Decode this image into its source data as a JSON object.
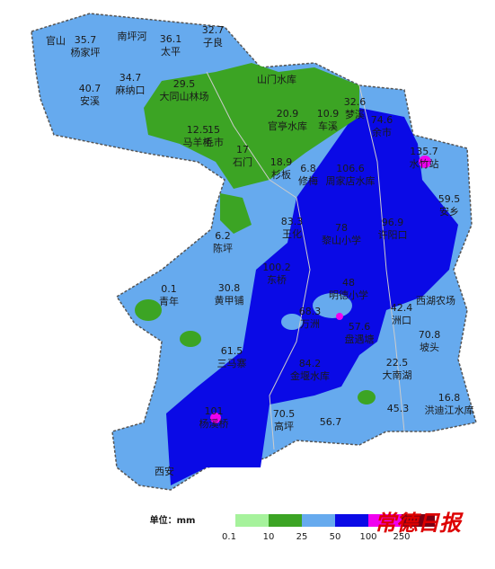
{
  "stations": [
    {
      "value": "35.7",
      "name": "杨家坪",
      "x": 0
    },
    {
      "value": "36.1",
      "name": "太平"
    },
    {
      "value": "32.7",
      "name": "子良"
    },
    {
      "value": "34.7",
      "name": "麻纳口"
    },
    {
      "value": "40.7",
      "name": "安溪"
    },
    {
      "value": "29.5",
      "name": "大同山林场"
    },
    {
      "value": "32.6",
      "name": "梦溪"
    },
    {
      "value": "20.9",
      "name": "官亭水库"
    },
    {
      "value": "10.9",
      "name": "车溪"
    },
    {
      "value": "74.6",
      "name": "余市"
    },
    {
      "value": "12.5",
      "name": "马羊桥"
    },
    {
      "value": "15",
      "name": "毛市"
    },
    {
      "value": "17",
      "name": "石门"
    },
    {
      "value": "18.9",
      "name": "杉板"
    },
    {
      "value": "6.8",
      "name": "修梅"
    },
    {
      "value": "106.6",
      "name": "周家店水库"
    },
    {
      "value": "135.7",
      "name": "水竹站"
    },
    {
      "value": "59.5",
      "name": "安乡"
    },
    {
      "value": "83.3",
      "name": "王化"
    },
    {
      "value": "78",
      "name": "黎山小学"
    },
    {
      "value": "96.9",
      "name": "许阳口"
    },
    {
      "value": "6.2",
      "name": "陈坪"
    },
    {
      "value": "0.1",
      "name": "青年"
    },
    {
      "value": "30.8",
      "name": "黄甲铺"
    },
    {
      "value": "100.2",
      "name": "东桥"
    },
    {
      "value": "48",
      "name": "明德小学"
    },
    {
      "value": "68.3",
      "name": "万洲"
    },
    {
      "value": "42.4",
      "name": "洲口"
    },
    {
      "value": "57.6",
      "name": "盘遇塘"
    },
    {
      "value": "70.8",
      "name": "坡头"
    },
    {
      "value": "61.5",
      "name": "三马寨"
    },
    {
      "value": "84.2",
      "name": "金堰水库"
    },
    {
      "value": "22.5",
      "name": "大南湖"
    },
    {
      "value": "16.8",
      "name": "洪迪江水库"
    },
    {
      "value": "101",
      "name": "杨溪桥"
    },
    {
      "value": "70.5",
      "name": "高坪"
    }
  ],
  "places": [
    "官山",
    "南坪河",
    "山门水库",
    "西湖农场",
    "西安"
  ],
  "other_values": [
    "45.3",
    "56.7"
  ],
  "legend": {
    "unit": "单位：mm",
    "ticks": [
      "0.1",
      "10",
      "25",
      "50",
      "100",
      "250"
    ],
    "colors": [
      "#a6f29c",
      "#3ca424",
      "#66aaee",
      "#0a0ae6",
      "#f000f0",
      "#7a0014"
    ]
  },
  "watermark": "常德日报"
}
